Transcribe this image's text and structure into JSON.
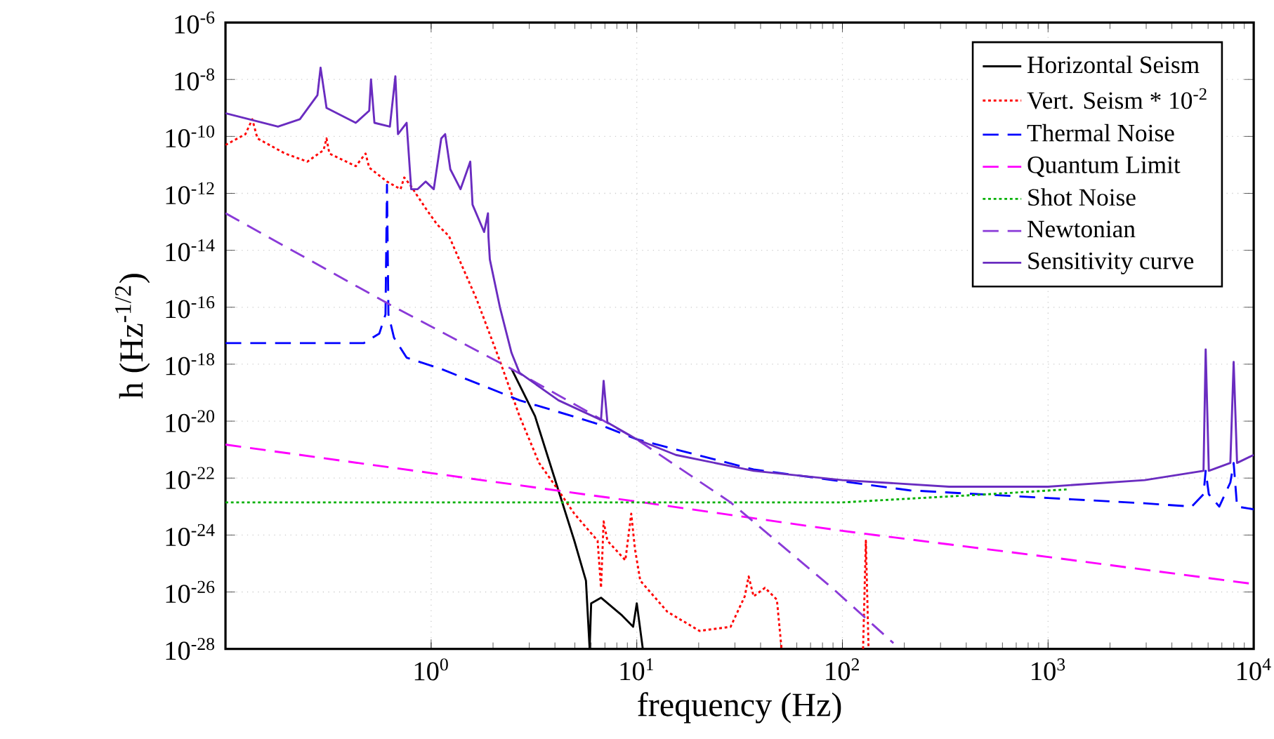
{
  "chart_data": {
    "type": "line",
    "xlabel": "frequency (Hz)",
    "ylabel": "h (Hz$^{-1/2}$)",
    "log": "xy",
    "grid": true,
    "legend": "top right",
    "marker": "none",
    "xlim": [
      0.1,
      10000
    ],
    "ylim": [
      1e-28,
      1e-06
    ],
    "xticks": [
      {
        "value": 1,
        "label": "10$^{0}$"
      },
      {
        "value": 10,
        "label": "10$^{1}$"
      },
      {
        "value": 100,
        "label": "10$^{2}$"
      },
      {
        "value": 1000,
        "label": "10$^{3}$"
      },
      {
        "value": 10000,
        "label": "10$^{4}$"
      }
    ],
    "yticks": [
      {
        "value": 1e-28,
        "label": "10$^{-28}$"
      },
      {
        "value": 1e-26,
        "label": "10$^{-26}$"
      },
      {
        "value": 1e-24,
        "label": "10$^{-24}$"
      },
      {
        "value": 1e-22,
        "label": "10$^{-22}$"
      },
      {
        "value": 1e-20,
        "label": "10$^{-20}$"
      },
      {
        "value": 1e-18,
        "label": "10$^{-18}$"
      },
      {
        "value": 1e-16,
        "label": "10$^{-16}$"
      },
      {
        "value": 1e-14,
        "label": "10$^{-14}$"
      },
      {
        "value": 1e-12,
        "label": "10$^{-12}$"
      },
      {
        "value": 1e-10,
        "label": "10$^{-10}$"
      },
      {
        "value": 1e-08,
        "label": "10$^{-8}$"
      },
      {
        "value": 1e-06,
        "label": "10$^{-6}$"
      }
    ],
    "series": [
      {
        "name": "Horizontal Seism",
        "color": "#000000",
        "line_style": "solid",
        "x": [
          2.46,
          3.2,
          4.16,
          4.97,
          5.66,
          5.9,
          6.0,
          6.7,
          8.4,
          9.6,
          10,
          10.7
        ],
        "values": [
          6.8e-19,
          1.5e-20,
          3.7e-23,
          6.3e-25,
          2.5e-26,
          1e-28,
          4e-27,
          6.3e-27,
          1.6e-27,
          6e-28,
          4e-27,
          1e-28
        ]
      },
      {
        "name": "Vert. Seism * 10$^{-2}$",
        "color": "#ff0000",
        "line_style": "dotted",
        "x": [
          0.1,
          0.125,
          0.135,
          0.143,
          0.195,
          0.25,
          0.3,
          0.31,
          0.32,
          0.43,
          0.48,
          0.5,
          0.61,
          0.71,
          0.74,
          0.79,
          0.94,
          1.07,
          1.22,
          1.66,
          2.16,
          2.69,
          3.35,
          4.16,
          4.97,
          6.45,
          6.7,
          6.9,
          7.2,
          8.8,
          9.4,
          9.8,
          10.4,
          14.1,
          20.2,
          28.6,
          33.5,
          35,
          37,
          42,
          48,
          50.6,
          90,
          126,
          130,
          134
        ],
        "values": [
          5e-11,
          1.2e-10,
          4e-10,
          8.5e-11,
          2.5e-11,
          1.3e-11,
          3.3e-11,
          8.5e-11,
          2.5e-11,
          9e-12,
          2.5e-11,
          8e-12,
          2.6e-12,
          1.4e-12,
          3.6e-12,
          2e-12,
          3e-13,
          8e-14,
          3.2e-14,
          2e-16,
          1.3e-18,
          1.5e-20,
          3.4e-22,
          3.7e-23,
          5.6e-24,
          6.3e-25,
          1.4e-26,
          3e-24,
          6.3e-25,
          1.3e-25,
          5.6e-24,
          3.2e-25,
          2.5e-26,
          2e-27,
          4.3e-28,
          6e-28,
          7e-27,
          3.5e-26,
          7e-27,
          1.4e-26,
          5.4e-27,
          1e-28,
          null,
          1e-28,
          6.3e-25,
          1e-28
        ]
      },
      {
        "name": "Thermal Noise",
        "color": "#0000ff",
        "line_style": "dashed",
        "x": [
          0.1,
          0.47,
          0.56,
          0.6,
          0.61,
          0.62,
          0.66,
          0.76,
          1.12,
          1.74,
          2.69,
          4.16,
          6.45,
          10,
          37,
          213,
          1000,
          2950,
          5000,
          5700,
          5840,
          6050,
          6800,
          7700,
          7990,
          8300,
          10000
        ],
        "values": [
          5.5e-18,
          5.5e-18,
          1.2e-17,
          5.6e-17,
          2e-12,
          5.6e-17,
          8.5e-18,
          1.7e-18,
          6.8e-19,
          1.9e-19,
          5.4e-20,
          2.1e-20,
          8e-21,
          2.3e-21,
          2e-22,
          3.7e-23,
          2e-23,
          1.3e-23,
          1e-23,
          2.7e-23,
          1.8e-22,
          2.7e-23,
          1e-23,
          7e-23,
          3.4e-22,
          1e-23,
          8e-24
        ]
      },
      {
        "name": "Quantum Limit",
        "color": "#ff00ff",
        "line_style": "dashed",
        "x": [
          0.1,
          1,
          10,
          100,
          1000,
          10000
        ],
        "values": [
          1.5e-21,
          1.5e-22,
          1.5e-23,
          1.4e-24,
          1.7e-25,
          1.9e-26
        ]
      },
      {
        "name": "Shot Noise",
        "color": "#00b000",
        "line_style": "dotted",
        "x": [
          0.1,
          100,
          213,
          510,
          1230
        ],
        "values": [
          1.4e-23,
          1.4e-23,
          1.9e-23,
          2.7e-23,
          4e-23
        ]
      },
      {
        "name": "Newtonian",
        "color": "#8a3ad8",
        "line_style": "dashed",
        "x": [
          0.1,
          0.61,
          2.46,
          10,
          28.6,
          89,
          177
        ],
        "values": [
          2e-13,
          1.4e-16,
          6.8e-19,
          2.3e-21,
          1.4e-23,
          1.4e-26,
          1.6e-28
        ]
      },
      {
        "name": "Sensitivity curve",
        "color": "#6a2cc0",
        "line_style": "solid",
        "x": [
          0.1,
          0.18,
          0.23,
          0.28,
          0.29,
          0.31,
          0.43,
          0.5,
          0.51,
          0.53,
          0.63,
          0.67,
          0.69,
          0.76,
          0.8,
          0.86,
          0.94,
          1.03,
          1.12,
          1.17,
          1.24,
          1.39,
          1.55,
          1.59,
          1.81,
          1.89,
          1.9,
          1.93,
          2.16,
          2.46,
          2.69,
          4.16,
          6.7,
          6.9,
          7.2,
          10,
          15.5,
          37,
          100,
          330,
          1000,
          2950,
          5700,
          5840,
          6050,
          7700,
          7990,
          8300,
          10000
        ],
        "values": [
          6.5e-10,
          2.2e-10,
          4e-10,
          2.8e-09,
          2.6e-08,
          1e-09,
          3e-10,
          8e-10,
          1e-08,
          3e-10,
          2.2e-10,
          1.3e-08,
          1.2e-10,
          3e-10,
          1.4e-12,
          1.4e-12,
          2.6e-12,
          1.4e-12,
          8.5e-11,
          1.2e-10,
          7e-12,
          1.4e-12,
          1.3e-11,
          4e-13,
          4.4e-14,
          2e-13,
          3e-14,
          4.8e-15,
          1e-16,
          2.5e-18,
          5e-19,
          5.4e-20,
          1.1e-20,
          2.6e-19,
          9e-21,
          2.3e-21,
          6.5e-22,
          1.8e-22,
          8.5e-23,
          5e-23,
          5e-23,
          8.5e-23,
          1.8e-22,
          3.3e-18,
          1.8e-22,
          3.4e-22,
          1.2e-18,
          3.4e-22,
          6.5e-22
        ]
      }
    ]
  }
}
